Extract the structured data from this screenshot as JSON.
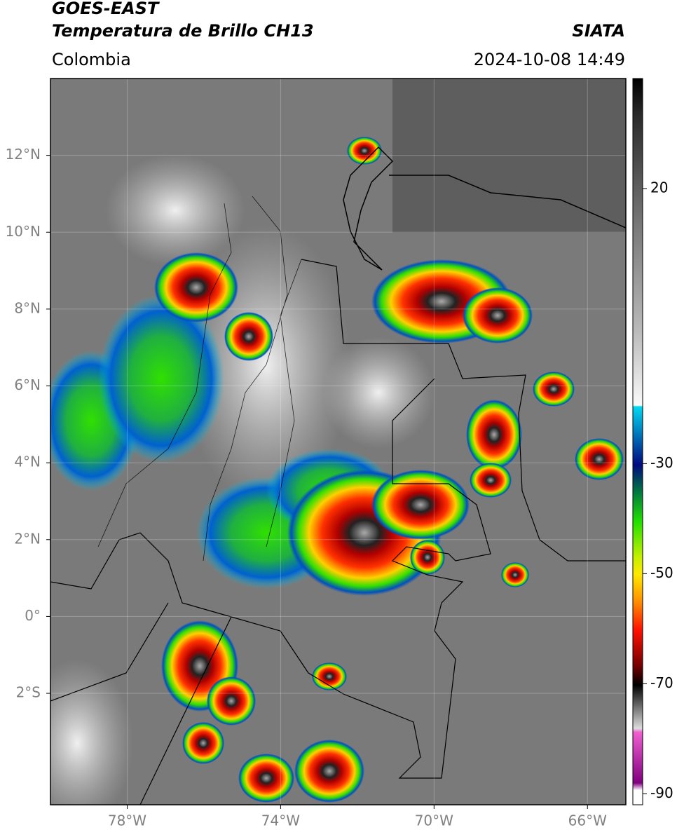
{
  "header": {
    "title": "GOES-EAST",
    "subtitle": "Temperatura de Brillo CH13",
    "source": "SIATA",
    "region": "Colombia",
    "timestamp": "2024-10-08 14:49"
  },
  "map": {
    "lonlim": [
      -80,
      -65
    ],
    "latlim": [
      -4.9,
      14
    ],
    "lonticks": [
      {
        "value": -78,
        "label": "78°W"
      },
      {
        "value": -74,
        "label": "74°W"
      },
      {
        "value": -70,
        "label": "70°W"
      },
      {
        "value": -66,
        "label": "66°W"
      }
    ],
    "latticks": [
      {
        "value": 12,
        "label": "12°N"
      },
      {
        "value": 10,
        "label": "10°N"
      },
      {
        "value": 8,
        "label": "8°N"
      },
      {
        "value": 6,
        "label": "6°N"
      },
      {
        "value": 4,
        "label": "4°N"
      },
      {
        "value": 2,
        "label": "2°N"
      },
      {
        "value": 0,
        "label": "0°"
      },
      {
        "value": -2,
        "label": "2°S"
      }
    ],
    "grid": true
  },
  "colorbar": {
    "lim": [
      -92,
      40
    ],
    "ticks": [
      20,
      -30,
      -50,
      -70,
      -90
    ]
  }
}
